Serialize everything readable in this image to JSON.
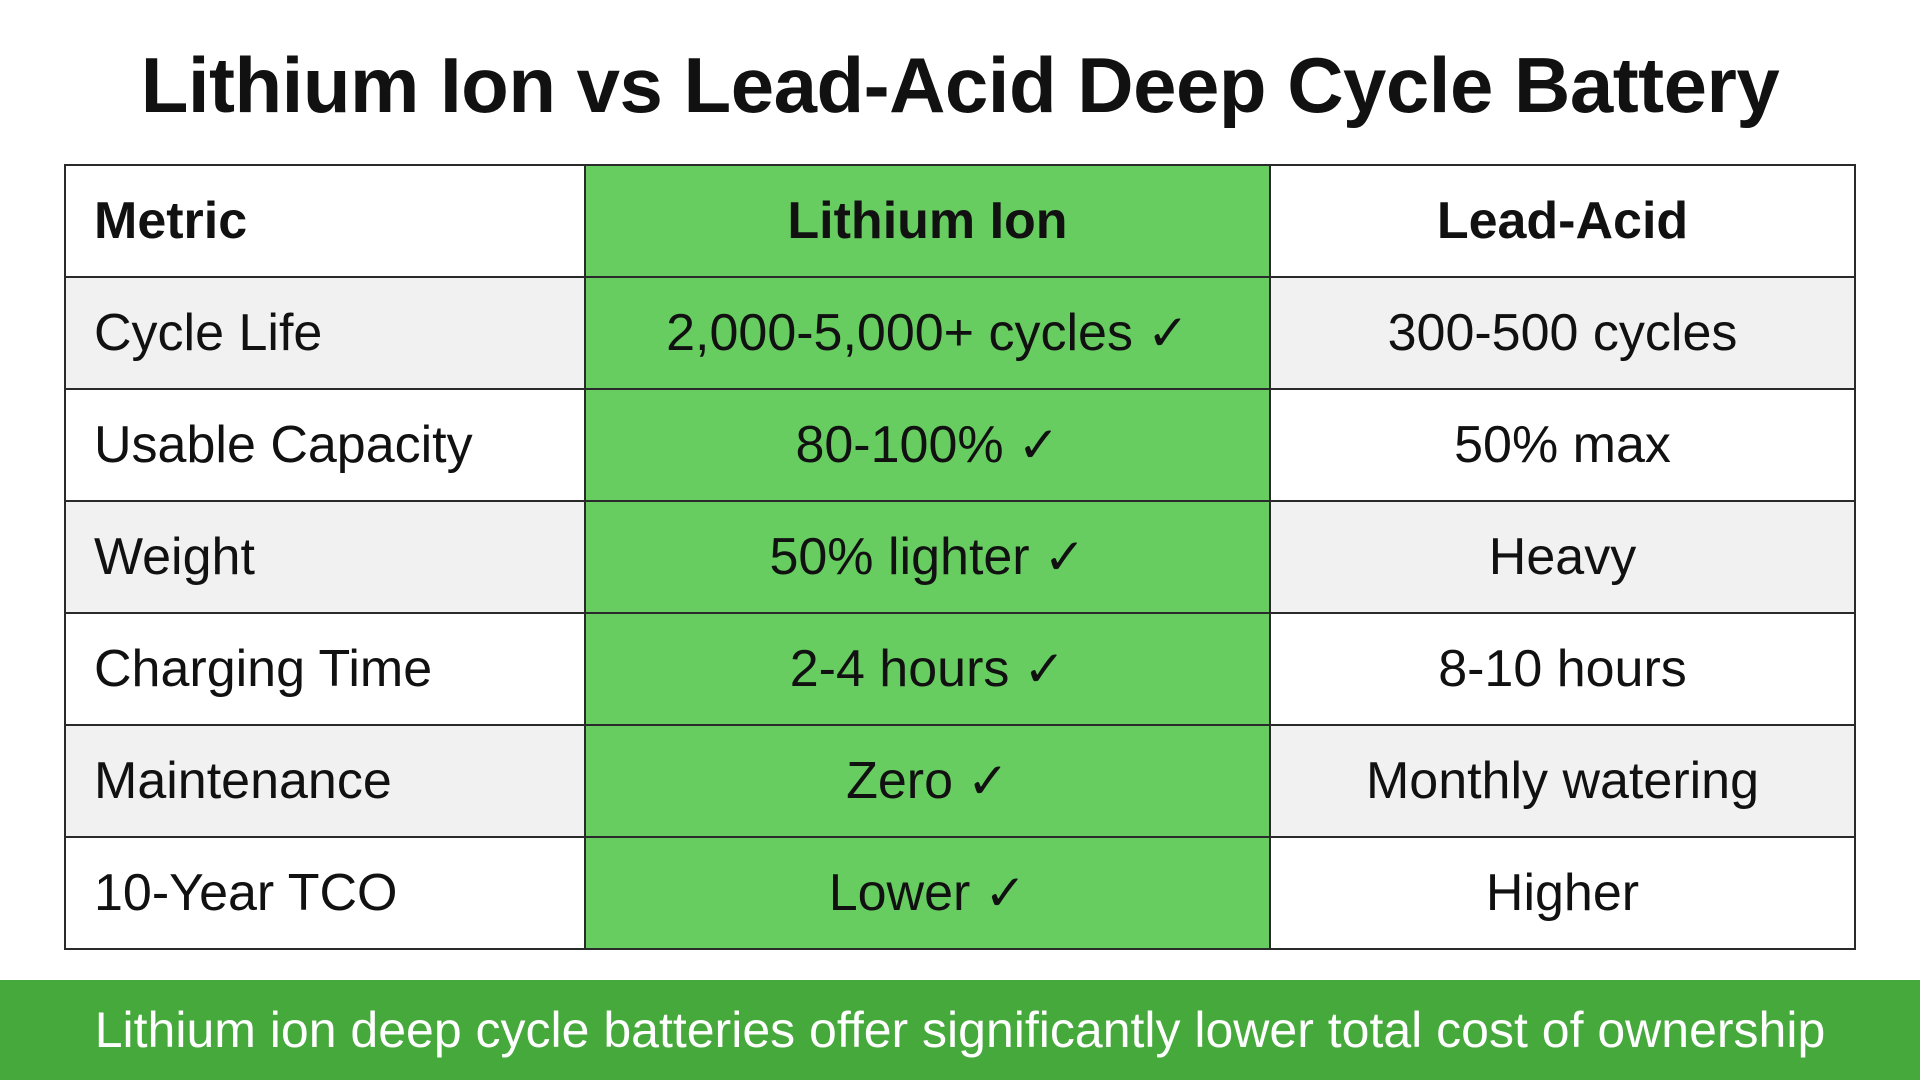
{
  "title": "Lithium Ion vs Lead-Acid Deep Cycle Battery",
  "chart_data": {
    "type": "table",
    "title": "Lithium Ion vs Lead-Acid Deep Cycle Battery",
    "columns": [
      "Metric",
      "Lithium Ion",
      "Lead-Acid"
    ],
    "rows": [
      {
        "metric": "Cycle Life",
        "lithium_ion": "2,000-5,000+ cycles",
        "lead_acid": "300-500 cycles"
      },
      {
        "metric": "Usable Capacity",
        "lithium_ion": "80-100%",
        "lead_acid": "50% max"
      },
      {
        "metric": "Weight",
        "lithium_ion": "50% lighter",
        "lead_acid": "Heavy"
      },
      {
        "metric": "Charging Time",
        "lithium_ion": "2-4 hours",
        "lead_acid": "8-10 hours"
      },
      {
        "metric": "Maintenance",
        "lithium_ion": "Zero",
        "lead_acid": "Monthly watering"
      },
      {
        "metric": "10-Year TCO",
        "lithium_ion": "Lower",
        "lead_acid": "Higher"
      }
    ],
    "check_mark": "✓",
    "highlight_column": "Lithium Ion",
    "colors": {
      "highlight_column": "#67cd60",
      "footer_band": "#46a93c",
      "striped_row": "#f1f1f1"
    }
  },
  "footer": {
    "text": "Lithium ion deep cycle batteries offer significantly lower total cost of ownership"
  }
}
